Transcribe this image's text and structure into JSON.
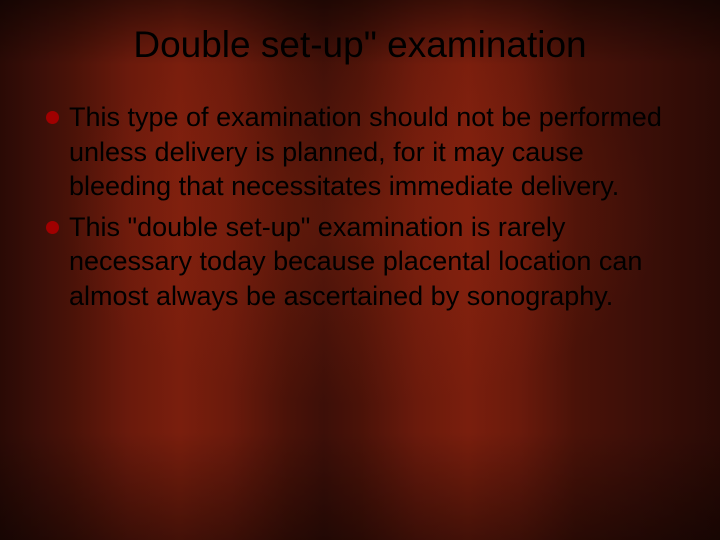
{
  "slide": {
    "title": "Double set-up\" examination",
    "title_color": "#000000",
    "title_fontsize": 37,
    "body_fontsize": 27,
    "body_color": "#000000",
    "bullet_color": "#a00000",
    "background_base": "#3d0f08",
    "bullets": [
      "This type of examination should not be performed unless delivery is planned, for it may cause bleeding that necessitates immediate delivery.",
      "This \"double set-up\" examination is rarely necessary today because placental location can almost always be ascertained by sonography."
    ]
  }
}
